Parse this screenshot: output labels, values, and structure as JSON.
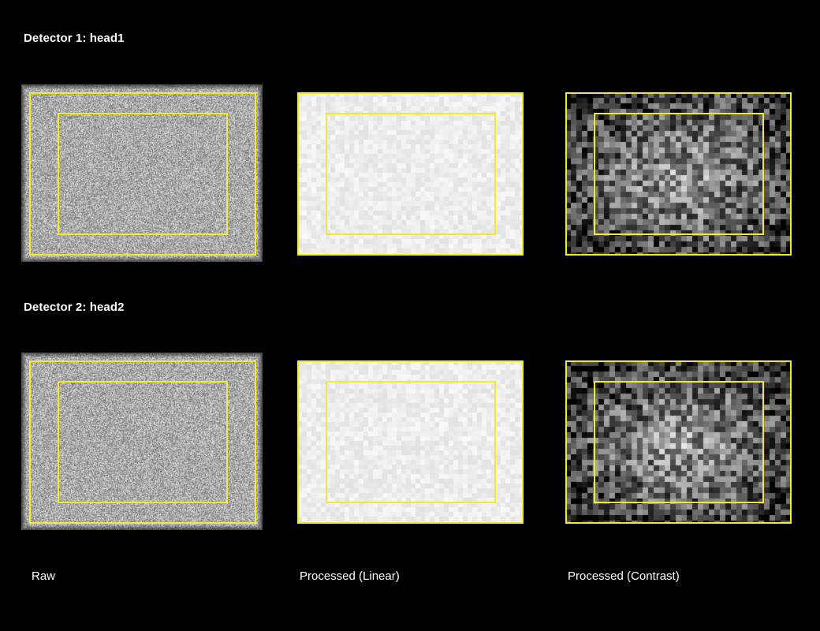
{
  "detectors": [
    {
      "title": "Detector 1: head1"
    },
    {
      "title": "Detector 2: head2"
    }
  ],
  "columns": [
    "Raw",
    "Processed (Linear)",
    "Processed (Contrast)"
  ],
  "roi_color": "#f2ec28"
}
